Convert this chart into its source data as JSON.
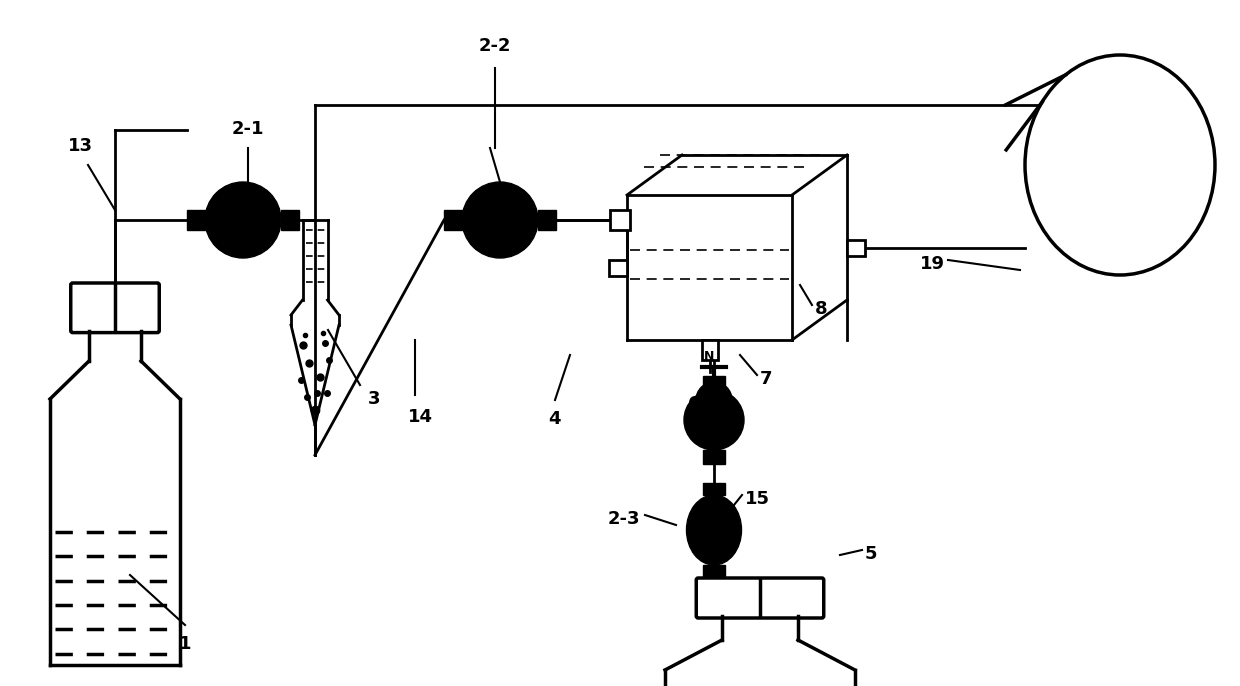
{
  "bg_color": "#ffffff",
  "line_color": "#000000",
  "figsize": [
    12.4,
    6.86
  ],
  "dpi": 100,
  "lw": 2.0
}
